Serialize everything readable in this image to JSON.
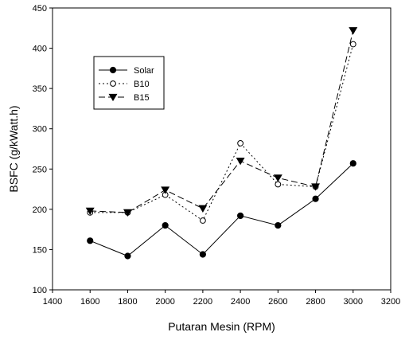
{
  "chart_data": {
    "type": "line",
    "title": "",
    "xlabel": "Putaran Mesin (RPM)",
    "ylabel": "BSFC (g/kWatt.h)",
    "xlim": [
      1400,
      3200
    ],
    "ylim": [
      100,
      450
    ],
    "xticks": [
      "1400",
      "1600",
      "1800",
      "2000",
      "2200",
      "2400",
      "2600",
      "2800",
      "3000",
      "3200"
    ],
    "yticks": [
      "100",
      "150",
      "200",
      "250",
      "300",
      "350",
      "400",
      "450"
    ],
    "x": [
      1600,
      1800,
      2000,
      2200,
      2400,
      2600,
      2800,
      3000
    ],
    "legend_position": "top-left",
    "grid": false,
    "series": [
      {
        "name": "Solar",
        "line_style": "solid",
        "marker": "filled-circle",
        "values": [
          161,
          142,
          180,
          144,
          192,
          180,
          213,
          257
        ]
      },
      {
        "name": "B10",
        "line_style": "dotted",
        "marker": "open-circle",
        "values": [
          196,
          196,
          218,
          186,
          282,
          231,
          228,
          405
        ]
      },
      {
        "name": "B15",
        "line_style": "dashed",
        "marker": "filled-triangle-down",
        "values": [
          198,
          196,
          224,
          201,
          260,
          239,
          228,
          422
        ]
      }
    ]
  }
}
